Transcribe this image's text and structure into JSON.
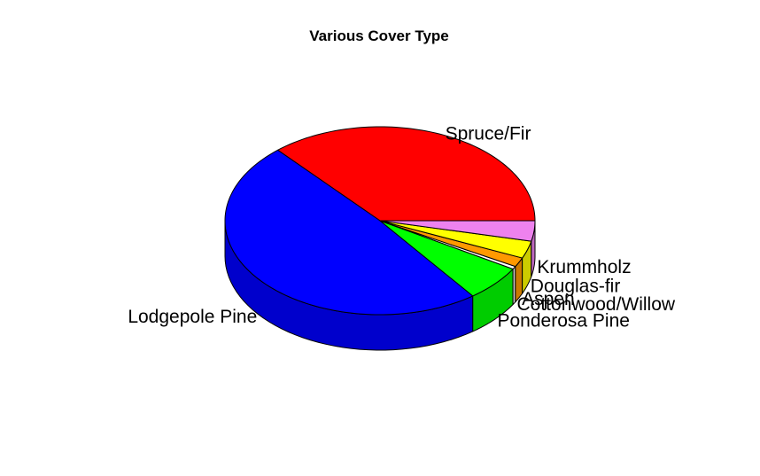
{
  "chart_data": {
    "type": "pie",
    "title": "Various Cover Type",
    "style": "3d",
    "labels": [
      "Spruce/Fir",
      "Lodgepole Pine",
      "Ponderosa Pine",
      "Cottonwood/Willow",
      "Aspen",
      "Douglas-fir",
      "Krummholz"
    ],
    "values": [
      36.5,
      48.8,
      6.2,
      0.5,
      1.6,
      3.0,
      3.5
    ],
    "colors": [
      "#ff0000",
      "#0000ff",
      "#00ff00",
      "#ffffff",
      "#ff9900",
      "#ffff00",
      "#ee82ee"
    ],
    "side_colors": [
      "#cc0000",
      "#0000cc",
      "#00cc00",
      "#cccccc",
      "#cc7a00",
      "#cccc00",
      "#be68be"
    ]
  }
}
